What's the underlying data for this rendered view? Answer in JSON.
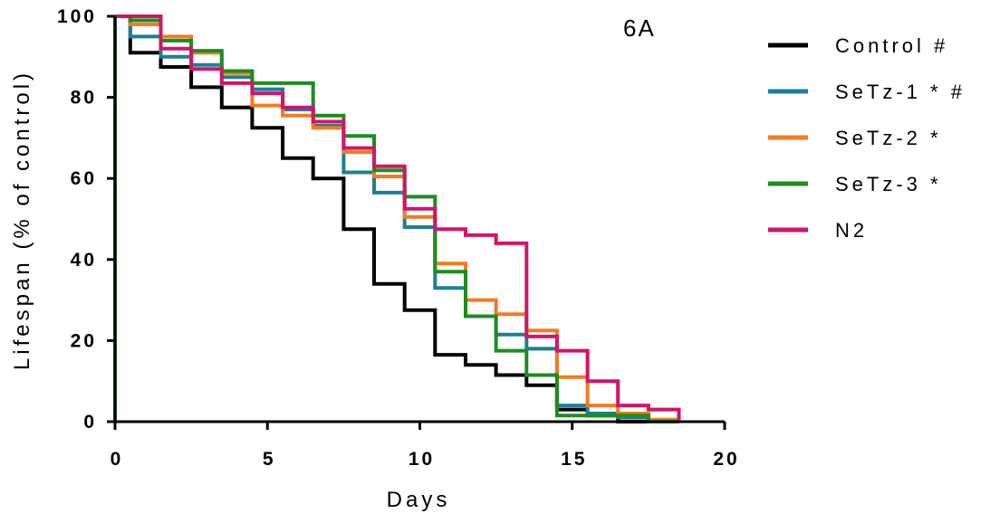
{
  "chart_data": {
    "type": "line",
    "title": "",
    "panel_label": "6A",
    "xlabel": "Days",
    "ylabel": "Lifespan (% of control)",
    "xlim": [
      0,
      20
    ],
    "ylim": [
      0,
      100
    ],
    "x_ticks": [
      0,
      5,
      10,
      15,
      20
    ],
    "y_ticks": [
      0,
      20,
      40,
      60,
      80,
      100
    ],
    "grid": false,
    "legend_position": "right",
    "steps": [
      0.5,
      1.5,
      2.5,
      3.5,
      4.5,
      5.5,
      6.5,
      7.5,
      8.5,
      9.5,
      10.5,
      11.5,
      12.5,
      13.5,
      14.5,
      15.5,
      16.5,
      17.5,
      18.5
    ],
    "series": [
      {
        "name": "Control #",
        "color": "#000000",
        "values": [
          91,
          87.5,
          82.5,
          77.5,
          72.5,
          65,
          60,
          47.5,
          34,
          27.5,
          16.5,
          14,
          11.5,
          9,
          3,
          1.5,
          0,
          0,
          0
        ]
      },
      {
        "name": "SeTz-1 * #",
        "color": "#1b7f99",
        "values": [
          95,
          90,
          88,
          85,
          82,
          77,
          73,
          61.5,
          56.5,
          48,
          33,
          26,
          21.5,
          18,
          4,
          2,
          1,
          0.3,
          0
        ]
      },
      {
        "name": "SeTz-2 *",
        "color": "#f47a20",
        "values": [
          98,
          95,
          91,
          86,
          78,
          75.5,
          72.5,
          66.5,
          60.5,
          50.5,
          39,
          30,
          26.5,
          22.5,
          11,
          4,
          2,
          0.5,
          0
        ]
      },
      {
        "name": "SeTz-3 *",
        "color": "#1e8c1e",
        "values": [
          99,
          94,
          91.5,
          86.5,
          83.5,
          83.5,
          75.5,
          70.5,
          62,
          55.5,
          37,
          26,
          17.5,
          11.5,
          1.5,
          1.5,
          1.5,
          0,
          0
        ]
      },
      {
        "name": "N2",
        "color": "#d0156a",
        "values": [
          100,
          92,
          87,
          83.5,
          81,
          77.5,
          74,
          67.5,
          63,
          52.5,
          47.5,
          46,
          44,
          21,
          17.5,
          10,
          4,
          3,
          0.5
        ]
      }
    ]
  }
}
